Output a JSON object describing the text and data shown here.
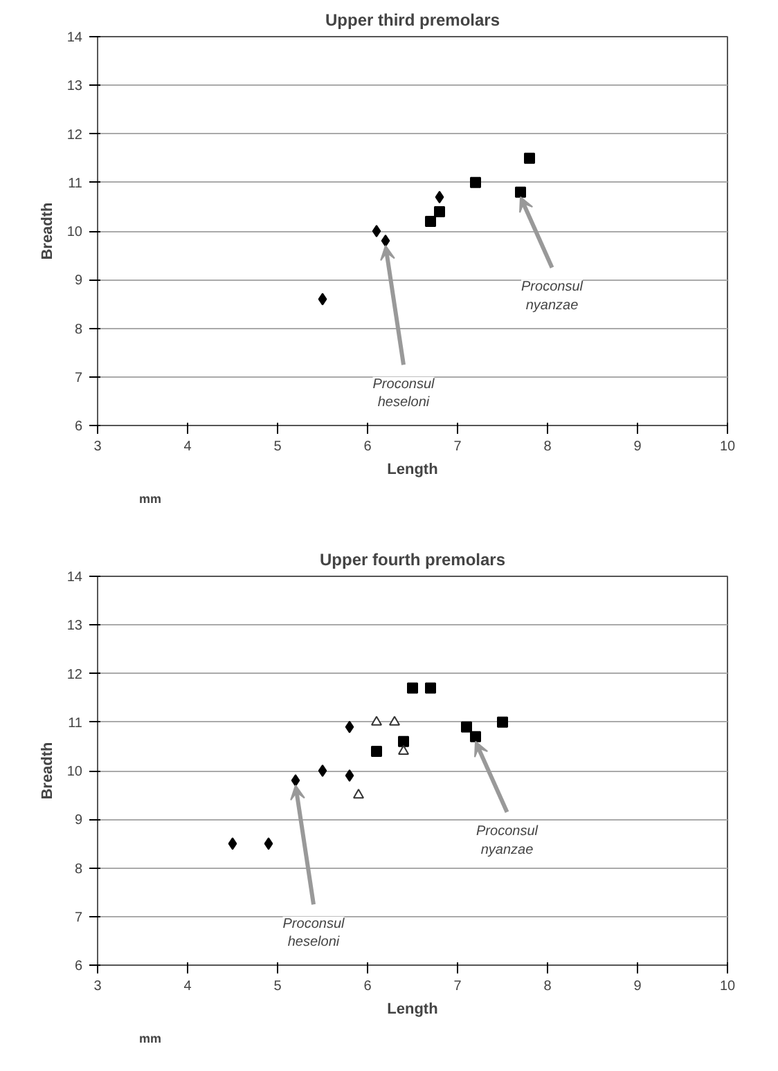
{
  "chart_data": [
    {
      "type": "scatter",
      "title": "Upper third premolars",
      "xlabel": "Length",
      "ylabel": "Breadth",
      "xlim": [
        3,
        10
      ],
      "ylim": [
        6,
        14
      ],
      "xticks": [
        3,
        4,
        5,
        6,
        7,
        8,
        9,
        10
      ],
      "yticks": [
        6,
        7,
        8,
        9,
        10,
        11,
        12,
        13,
        14
      ],
      "grid": "y",
      "series": [
        {
          "color": "#000000",
          "marker": "diamond",
          "x": [
            5.5,
            6.1,
            6.2,
            6.8
          ],
          "values": [
            8.6,
            10.0,
            9.8,
            10.7
          ]
        },
        {
          "color": "#000000",
          "marker": "square",
          "x": [
            6.7,
            6.8,
            7.2,
            7.7,
            7.8
          ],
          "values": [
            10.2,
            10.4,
            11.0,
            10.8,
            11.5
          ]
        }
      ],
      "annotations": [
        {
          "text": "Proconsul\nheseloni",
          "x": 6.2,
          "y": 9.8
        },
        {
          "text": "Proconsul\nnyanzae",
          "x": 7.7,
          "y": 10.8
        },
        "mm"
      ]
    },
    {
      "type": "scatter",
      "title": "Upper fourth premolars",
      "xlabel": "Length",
      "ylabel": "Breadth",
      "xlim": [
        3,
        10
      ],
      "ylim": [
        6,
        14
      ],
      "xticks": [
        3,
        4,
        5,
        6,
        7,
        8,
        9,
        10
      ],
      "yticks": [
        6,
        7,
        8,
        9,
        10,
        11,
        12,
        13,
        14
      ],
      "grid": "y",
      "series": [
        {
          "color": "#000000",
          "marker": "diamond",
          "x": [
            4.5,
            4.9,
            5.2,
            5.5,
            5.8,
            5.8
          ],
          "values": [
            8.5,
            8.5,
            9.8,
            10.0,
            9.9,
            10.9
          ]
        },
        {
          "color": "#000000",
          "marker": "square",
          "x": [
            6.1,
            6.4,
            6.5,
            6.7,
            7.1,
            7.2,
            7.5
          ],
          "values": [
            10.4,
            10.6,
            11.7,
            11.7,
            10.9,
            10.7,
            11.0
          ]
        },
        {
          "color": "#333333",
          "marker": "triangle",
          "x": [
            5.9,
            6.1,
            6.3,
            6.4
          ],
          "values": [
            9.5,
            11.0,
            11.0,
            10.4
          ]
        }
      ],
      "annotations": [
        {
          "text": "Proconsul\nheseloni",
          "x": 5.2,
          "y": 9.8
        },
        {
          "text": "Proconsul\nnyanzae",
          "x": 7.2,
          "y": 10.7
        },
        "mm"
      ]
    }
  ]
}
